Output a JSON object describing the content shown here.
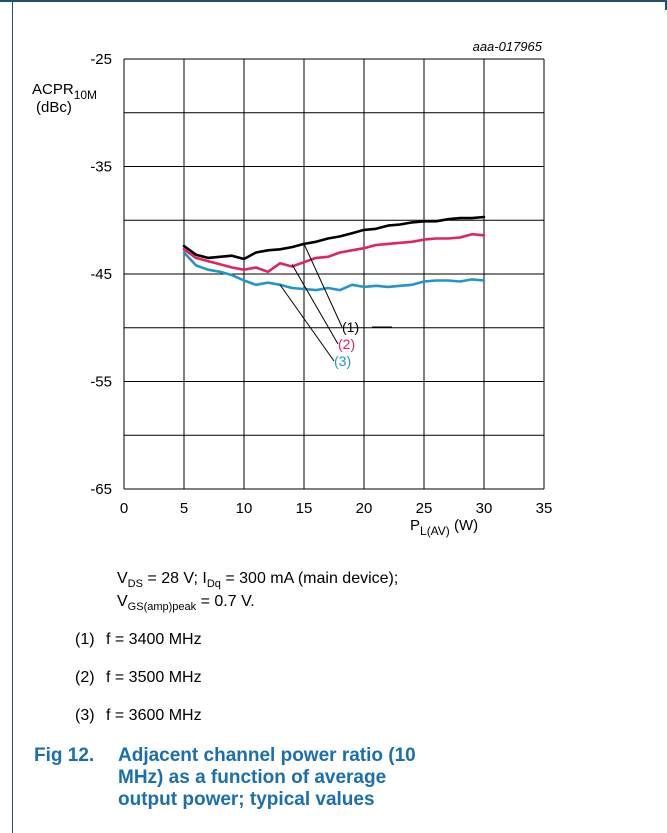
{
  "chart_data": {
    "type": "line",
    "id_label": "aaa-017965",
    "ylabel_main": "ACPR",
    "ylabel_sub": "10M",
    "ylabel_unit": "(dBc)",
    "xlabel_main": "P",
    "xlabel_sub": "L(AV)",
    "xlabel_unit": "(W)",
    "xlim": [
      0,
      35
    ],
    "ylim": [
      -65,
      -25
    ],
    "x_ticks": [
      "0",
      "5",
      "10",
      "15",
      "20",
      "25",
      "30",
      "35"
    ],
    "y_ticks": [
      "-25",
      "-35",
      "-45",
      "-55",
      "-65"
    ],
    "grid": true,
    "series": [
      {
        "name": "(1)",
        "color": "#000000",
        "x": [
          5,
          6,
          7,
          8,
          9,
          10,
          11,
          12,
          13,
          14,
          15,
          16,
          17,
          18,
          19,
          20,
          21,
          22,
          23,
          24,
          25,
          26,
          27,
          28,
          29,
          30
        ],
        "y": [
          -42.4,
          -43.2,
          -43.5,
          -43.4,
          -43.3,
          -43.6,
          -43.0,
          -42.8,
          -42.7,
          -42.5,
          -42.2,
          -42.0,
          -41.7,
          -41.5,
          -41.2,
          -40.9,
          -40.8,
          -40.5,
          -40.4,
          -40.2,
          -40.1,
          -40.1,
          -39.9,
          -39.8,
          -39.8,
          -39.7
        ]
      },
      {
        "name": "(2)",
        "color": "#e0245e",
        "x": [
          5,
          6,
          7,
          8,
          9,
          10,
          11,
          12,
          13,
          14,
          15,
          16,
          17,
          18,
          19,
          20,
          21,
          22,
          23,
          24,
          25,
          26,
          27,
          28,
          29,
          30
        ],
        "y": [
          -42.7,
          -43.5,
          -43.8,
          -44.1,
          -44.4,
          -44.6,
          -44.4,
          -44.8,
          -44.0,
          -44.3,
          -43.9,
          -43.5,
          -43.4,
          -43.0,
          -42.8,
          -42.6,
          -42.3,
          -42.2,
          -42.1,
          -42.0,
          -41.8,
          -41.7,
          -41.7,
          -41.6,
          -41.3,
          -41.4
        ]
      },
      {
        "name": "(3)",
        "color": "#2096cb",
        "x": [
          5,
          6,
          7,
          8,
          9,
          10,
          11,
          12,
          13,
          14,
          15,
          16,
          17,
          18,
          19,
          20,
          21,
          22,
          23,
          24,
          25,
          26,
          27,
          28,
          29,
          30
        ],
        "y": [
          -43.0,
          -44.2,
          -44.6,
          -44.8,
          -45.1,
          -45.6,
          -46.0,
          -45.8,
          -46.0,
          -46.3,
          -46.4,
          -46.5,
          -46.3,
          -46.5,
          -46.0,
          -46.2,
          -46.1,
          -46.2,
          -46.1,
          -46.0,
          -45.7,
          -45.6,
          -45.6,
          -45.7,
          -45.5,
          -45.6
        ]
      }
    ]
  },
  "conditions": {
    "line1": {
      "v": "V",
      "v_sub": "DS",
      "mid": " = 28 V; I",
      "i_sub": "Dq",
      "tail": " = 300 mA (main device);"
    },
    "line2": {
      "v": "V",
      "v_sub": "GS(amp)peak",
      "tail": " = 0.7 V."
    }
  },
  "legend": [
    {
      "num": "(1)",
      "text": "f = 3400 MHz"
    },
    {
      "num": "(2)",
      "text": "f = 3500 MHz"
    },
    {
      "num": "(3)",
      "text": "f = 3600 MHz"
    }
  ],
  "caption": {
    "fig": "Fig 12.",
    "text": "Adjacent channel power ratio (10 MHz) as a function of average output power; typical values"
  }
}
